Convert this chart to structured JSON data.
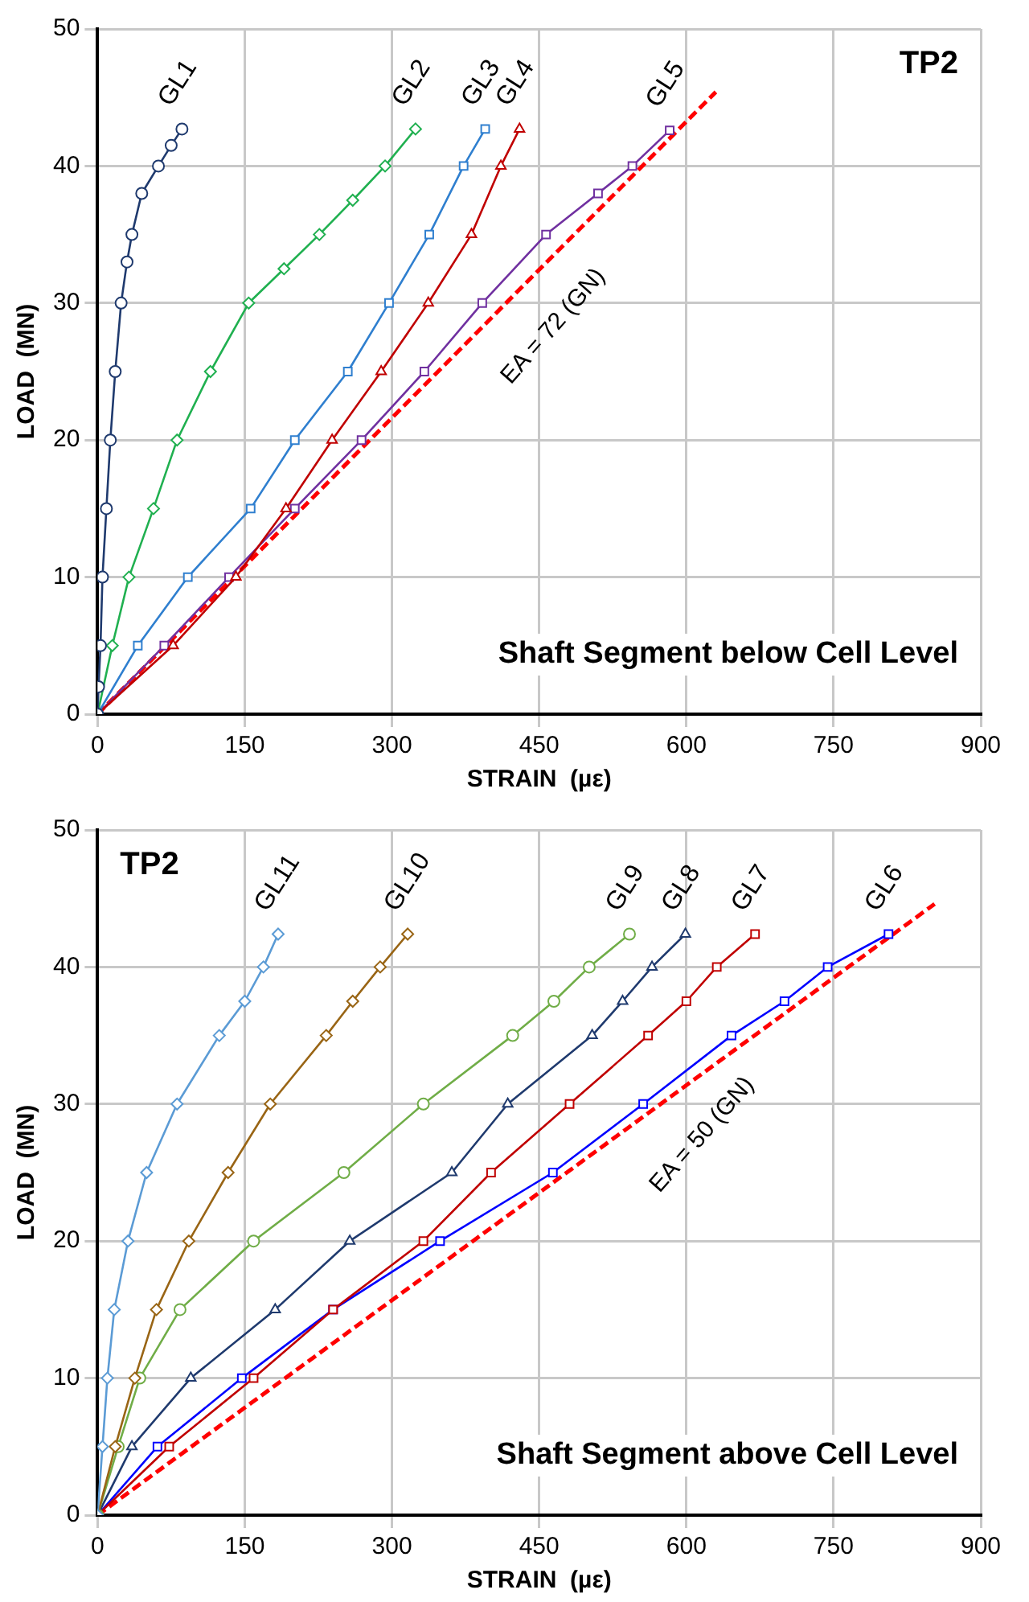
{
  "chart_data": [
    {
      "type": "line",
      "title": "TP2",
      "subtitle": "Shaft Segment below Cell Level",
      "xlabel": "STRAIN  (µε)",
      "ylabel": "LOAD  (MN)",
      "xlim": [
        0,
        900
      ],
      "ylim": [
        0,
        50
      ],
      "xticks": [
        0,
        150,
        300,
        450,
        600,
        750,
        900
      ],
      "yticks": [
        0,
        10,
        20,
        30,
        40,
        50
      ],
      "grid": true,
      "legend": false,
      "annotations": [
        "EA = 72 (GN)"
      ],
      "series": [
        {
          "name": "GL1",
          "color": "#1f3a6e",
          "marker": "circle",
          "x": [
            0,
            1,
            3,
            5,
            9,
            13,
            18,
            24,
            30,
            35,
            45,
            62,
            75,
            86
          ],
          "values": [
            0,
            2,
            5,
            10,
            15,
            20,
            25,
            30,
            33,
            35,
            38,
            40,
            41.5,
            42.7
          ]
        },
        {
          "name": "GL2",
          "color": "#20b050",
          "marker": "diamond",
          "x": [
            0,
            15,
            32,
            57,
            81,
            115,
            154,
            190,
            226,
            260,
            293,
            324
          ],
          "values": [
            0,
            5,
            10,
            15,
            20,
            25,
            30,
            32.5,
            35,
            37.5,
            40,
            42.7
          ]
        },
        {
          "name": "GL3",
          "color": "#2f7fcf",
          "marker": "square",
          "x": [
            0,
            41,
            92,
            156,
            201,
            255,
            297,
            338,
            373,
            395
          ],
          "values": [
            0,
            5,
            10,
            15,
            20,
            25,
            30,
            35,
            40,
            42.7
          ]
        },
        {
          "name": "GL4",
          "color": "#c00000",
          "marker": "triangle",
          "x": [
            0,
            77,
            141,
            192,
            239,
            289,
            337,
            381,
            411,
            430
          ],
          "values": [
            0,
            5,
            10,
            15,
            20,
            25,
            30,
            35,
            40,
            42.7
          ]
        },
        {
          "name": "GL5",
          "color": "#7030a0",
          "marker": "square",
          "x": [
            0,
            68,
            134,
            201,
            269,
            333,
            392,
            457,
            510,
            545,
            583
          ],
          "values": [
            0,
            5,
            10,
            15,
            20,
            25,
            30,
            35,
            38,
            40,
            42.6
          ]
        },
        {
          "color": "#ff0000",
          "marker": "none",
          "line_style": "dashed",
          "x": [
            0,
            630
          ],
          "values": [
            0,
            45.4
          ]
        }
      ]
    },
    {
      "type": "line",
      "title": "TP2",
      "subtitle": "Shaft Segment above Cell Level",
      "xlabel": "STRAIN  (µε)",
      "ylabel": "LOAD  (MN)",
      "xlim": [
        0,
        900
      ],
      "ylim": [
        0,
        50
      ],
      "xticks": [
        0,
        150,
        300,
        450,
        600,
        750,
        900
      ],
      "yticks": [
        0,
        10,
        20,
        30,
        40,
        50
      ],
      "grid": true,
      "legend": false,
      "annotations": [
        "EA = 50 (GN)"
      ],
      "series": [
        {
          "name": "GL11",
          "color": "#5b9bd5",
          "marker": "diamond",
          "x": [
            0,
            5,
            10,
            17,
            31,
            50,
            81,
            124,
            150,
            169,
            184
          ],
          "values": [
            0,
            5,
            10,
            15,
            20,
            25,
            30,
            35,
            37.5,
            40,
            42.4
          ]
        },
        {
          "name": "GL10",
          "color": "#996515",
          "marker": "diamond",
          "x": [
            0,
            18,
            38,
            60,
            93,
            133,
            176,
            233,
            260,
            288,
            316
          ],
          "values": [
            0,
            5,
            10,
            15,
            20,
            25,
            30,
            35,
            37.5,
            40,
            42.4
          ]
        },
        {
          "name": "GL9",
          "color": "#70ad47",
          "marker": "circle",
          "x": [
            0,
            21,
            43,
            84,
            159,
            251,
            332,
            423,
            465,
            501,
            542
          ],
          "values": [
            0,
            5,
            10,
            15,
            20,
            25,
            30,
            35,
            37.5,
            40,
            42.4
          ]
        },
        {
          "name": "GL8",
          "color": "#1f3a6e",
          "marker": "triangle",
          "x": [
            0,
            35,
            95,
            181,
            257,
            361,
            418,
            504,
            535,
            565,
            599
          ],
          "values": [
            0,
            5,
            10,
            15,
            20,
            25,
            30,
            35,
            37.5,
            40,
            42.4
          ]
        },
        {
          "name": "GL7",
          "color": "#c00000",
          "marker": "square",
          "x": [
            0,
            73,
            159,
            240,
            332,
            401,
            481,
            561,
            600,
            631,
            670
          ],
          "values": [
            0,
            5,
            10,
            15,
            20,
            25,
            30,
            35,
            37.5,
            40,
            42.4
          ]
        },
        {
          "name": "GL6",
          "color": "#0000ff",
          "marker": "square",
          "x": [
            0,
            61,
            147,
            240,
            349,
            464,
            556,
            646,
            700,
            744,
            806
          ],
          "values": [
            0,
            5,
            10,
            15,
            20,
            25,
            30,
            35,
            37.5,
            40,
            42.4
          ]
        },
        {
          "color": "#ff0000",
          "marker": "none",
          "line_style": "dashed",
          "x": [
            0,
            853
          ],
          "values": [
            0,
            44.6
          ]
        }
      ]
    }
  ]
}
